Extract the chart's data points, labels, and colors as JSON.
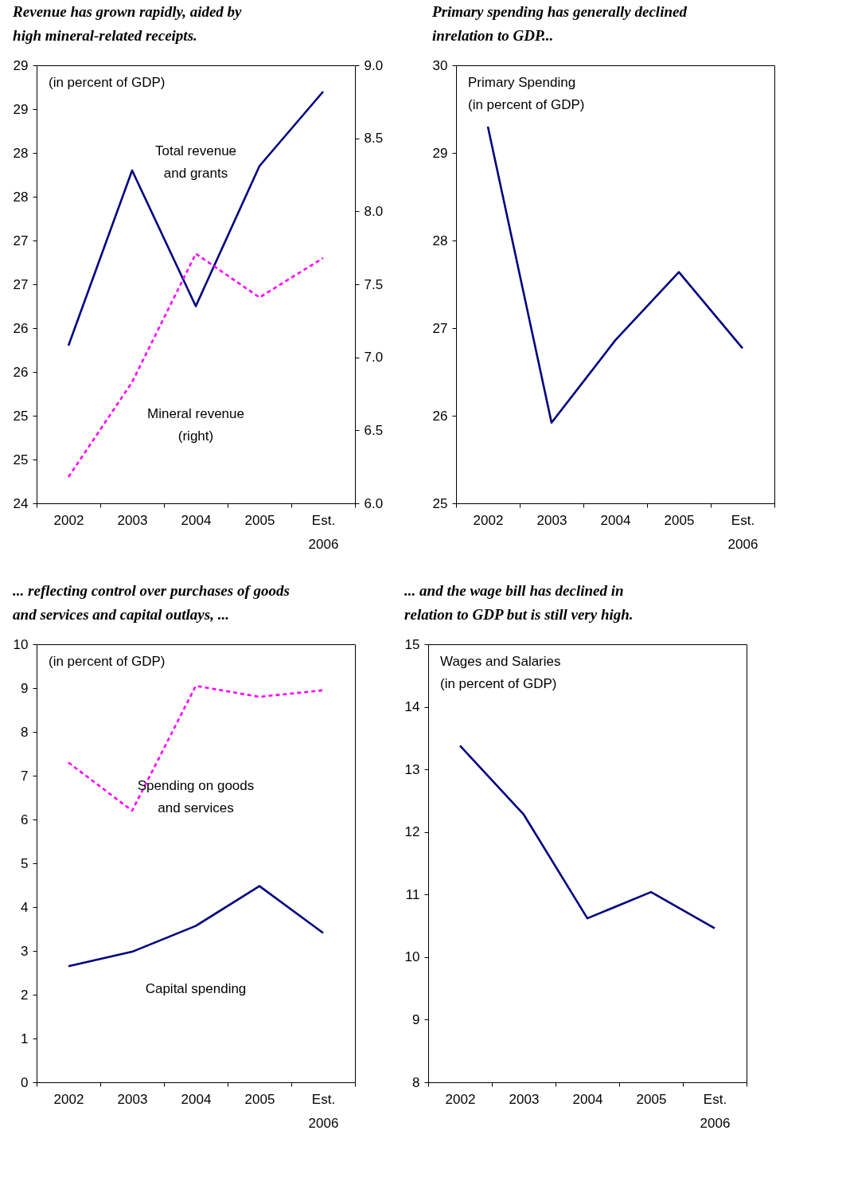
{
  "chart_data": [
    {
      "type": "line",
      "title": "Revenue has grown rapidly, aided by\nhigh mineral-related receipts.",
      "categories": [
        "2002",
        "2003",
        "2004",
        "2005",
        "Est. 2006"
      ],
      "series": [
        {
          "name": "Total revenue\n   and grants",
          "color": "#000080",
          "line_style": "solid",
          "values": [
            25.8,
            27.8,
            26.25,
            27.85,
            28.7
          ]
        },
        {
          "name": "Mineral revenue\n(right)",
          "color": "#ff00ff",
          "line_style": "dotted",
          "axis": "y2",
          "values": [
            6.18,
            6.83,
            7.71,
            7.41,
            7.68
          ]
        }
      ],
      "ylim": [
        24,
        29
      ],
      "yticks": [
        24,
        {
          "value": 24.5,
          "label": "25"
        },
        25,
        {
          "value": 25.5,
          "label": "26"
        },
        26,
        {
          "value": 26.5,
          "label": "27"
        },
        27,
        {
          "value": 27.5,
          "label": "28"
        },
        28,
        {
          "value": 28.5,
          "label": "29"
        },
        29
      ],
      "y2lim": [
        6,
        9
      ],
      "y2ticks": [
        {
          "value": 6,
          "label": "6.0"
        },
        6.5,
        {
          "value": 7,
          "label": "7.0"
        },
        7.5,
        {
          "value": 8,
          "label": "8.0"
        },
        8.5,
        {
          "value": 9,
          "label": "9.0"
        }
      ],
      "annotations": [
        "(in percent of GDP)"
      ],
      "grid": false
    },
    {
      "type": "line",
      "title": "Primary spending has generally declined\ninrelation to GDP...",
      "categories": [
        "2002",
        "2003",
        "2004",
        "2005",
        "Est. 2006"
      ],
      "series": [
        {
          "color": "#000080",
          "values": [
            29.3,
            25.92,
            26.86,
            27.64,
            26.77
          ]
        }
      ],
      "ylim": [
        25,
        30
      ],
      "yticks": [
        25,
        26,
        27,
        28,
        29,
        30
      ],
      "annotations": [
        "Primary Spending\n(in percent of GDP)"
      ],
      "grid": false
    },
    {
      "type": "line",
      "title": "... reflecting control over purchases of goods\nand services and capital outlays, ...",
      "categories": [
        "2002",
        "2003",
        "2004",
        "2005",
        "Est. 2006"
      ],
      "series": [
        {
          "name": "Spending on goods\nand services",
          "color": "#ff00ff",
          "line_style": "dotted",
          "values": [
            7.3,
            6.2,
            9.05,
            8.8,
            8.95
          ]
        },
        {
          "name": "Capital spending",
          "color": "#000080",
          "line_style": "solid",
          "values": [
            2.65,
            2.98,
            3.57,
            4.48,
            3.41
          ]
        }
      ],
      "ylim": [
        0,
        10
      ],
      "yticks": [
        0,
        1,
        2,
        3,
        4,
        5,
        6,
        7,
        8,
        9,
        10
      ],
      "annotations": [
        "(in percent of GDP)"
      ],
      "grid": false
    },
    {
      "type": "line",
      "title": "... and the wage bill has declined in\nrelation to GDP but is still very high.",
      "categories": [
        "2002",
        "2003",
        "2004",
        "2005",
        "Est. 2006"
      ],
      "series": [
        {
          "color": "#000080",
          "values": [
            13.38,
            12.28,
            10.62,
            11.04,
            10.46
          ]
        }
      ],
      "ylim": [
        8,
        15
      ],
      "yticks": [
        8,
        9,
        10,
        11,
        12,
        13,
        14,
        15
      ],
      "annotations": [
        "Wages and Salaries\n(in percent of GDP)"
      ],
      "grid": false
    }
  ]
}
